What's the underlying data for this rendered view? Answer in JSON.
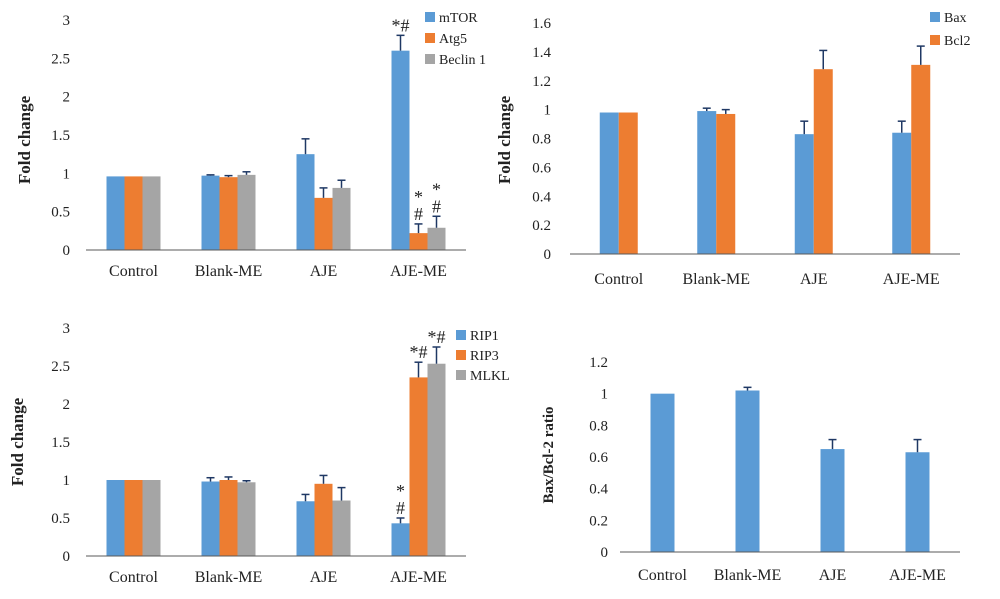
{
  "colors": {
    "blue": "#5b9bd5",
    "orange": "#ed7d31",
    "gray": "#a5a5a5",
    "axis": "#595959",
    "error": "#1f3864"
  },
  "chart_data": [
    {
      "type": "bar",
      "ylabel": "Fold change",
      "ylim": [
        0,
        3
      ],
      "yticks": [
        "0",
        "0.5",
        "1",
        "1.5",
        "2",
        "2.5",
        "3"
      ],
      "categories": [
        "Control",
        "Blank-ME",
        "AJE",
        "AJE-ME"
      ],
      "series": [
        {
          "name": "mTOR",
          "color": "blue",
          "values": [
            0.96,
            0.97,
            1.25,
            2.6
          ],
          "errors": [
            0,
            0.01,
            0.2,
            0.2
          ]
        },
        {
          "name": "Atg5",
          "color": "orange",
          "values": [
            0.96,
            0.95,
            0.68,
            0.22
          ],
          "errors": [
            0,
            0.02,
            0.13,
            0.12
          ]
        },
        {
          "name": "Beclin 1",
          "color": "gray",
          "values": [
            0.96,
            0.98,
            0.81,
            0.29
          ],
          "errors": [
            0,
            0.04,
            0.1,
            0.15
          ]
        }
      ],
      "legend": "top-right",
      "annotations": [
        {
          "series": 0,
          "category": 3,
          "lines": [
            "*#"
          ]
        },
        {
          "series": 1,
          "category": 3,
          "lines": [
            "*",
            "#"
          ]
        },
        {
          "series": 2,
          "category": 3,
          "lines": [
            "*",
            "#"
          ]
        }
      ]
    },
    {
      "type": "bar",
      "ylabel": "Fold change",
      "ylim": [
        0,
        1.6
      ],
      "yticks": [
        "0",
        "0.2",
        "0.4",
        "0.6",
        "0.8",
        "1",
        "1.2",
        "1.4",
        "1.6"
      ],
      "categories": [
        "Control",
        "Blank-ME",
        "AJE",
        "AJE-ME"
      ],
      "series": [
        {
          "name": "Bax",
          "color": "blue",
          "values": [
            0.98,
            0.99,
            0.83,
            0.84
          ],
          "errors": [
            0,
            0.02,
            0.09,
            0.08
          ]
        },
        {
          "name": "Bcl2",
          "color": "orange",
          "values": [
            0.98,
            0.97,
            1.28,
            1.31
          ],
          "errors": [
            0,
            0.03,
            0.13,
            0.13
          ]
        }
      ],
      "legend": "top-right",
      "annotations": []
    },
    {
      "type": "bar",
      "ylabel": "Fold change",
      "ylim": [
        0,
        3
      ],
      "yticks": [
        "0",
        "0.5",
        "1",
        "1.5",
        "2",
        "2.5",
        "3"
      ],
      "categories": [
        "Control",
        "Blank-ME",
        "AJE",
        "AJE-ME"
      ],
      "series": [
        {
          "name": "RIP1",
          "color": "blue",
          "values": [
            1.0,
            0.98,
            0.72,
            0.43
          ],
          "errors": [
            0,
            0.05,
            0.09,
            0.07
          ]
        },
        {
          "name": "RIP3",
          "color": "orange",
          "values": [
            1.0,
            1.0,
            0.95,
            2.35
          ],
          "errors": [
            0,
            0.04,
            0.11,
            0.2
          ]
        },
        {
          "name": "MLKL",
          "color": "gray",
          "values": [
            1.0,
            0.97,
            0.73,
            2.53
          ],
          "errors": [
            0,
            0.02,
            0.17,
            0.22
          ]
        }
      ],
      "legend": "top-right",
      "annotations": [
        {
          "series": 0,
          "category": 3,
          "lines": [
            "*",
            "#"
          ]
        },
        {
          "series": 1,
          "category": 3,
          "lines": [
            "*#"
          ]
        },
        {
          "series": 2,
          "category": 3,
          "lines": [
            "*#"
          ]
        }
      ]
    },
    {
      "type": "bar",
      "ylabel": "Bax/Bcl-2 ratio",
      "ylim": [
        0,
        1.2
      ],
      "yticks": [
        "0",
        "0.2",
        "0.4",
        "0.6",
        "0.8",
        "1",
        "1.2"
      ],
      "categories": [
        "Control",
        "Blank-ME",
        "AJE",
        "AJE-ME"
      ],
      "series": [
        {
          "name": "",
          "color": "blue",
          "values": [
            1.0,
            1.02,
            0.65,
            0.63
          ],
          "errors": [
            0,
            0.02,
            0.06,
            0.08
          ]
        }
      ],
      "legend": "none",
      "annotations": []
    }
  ]
}
